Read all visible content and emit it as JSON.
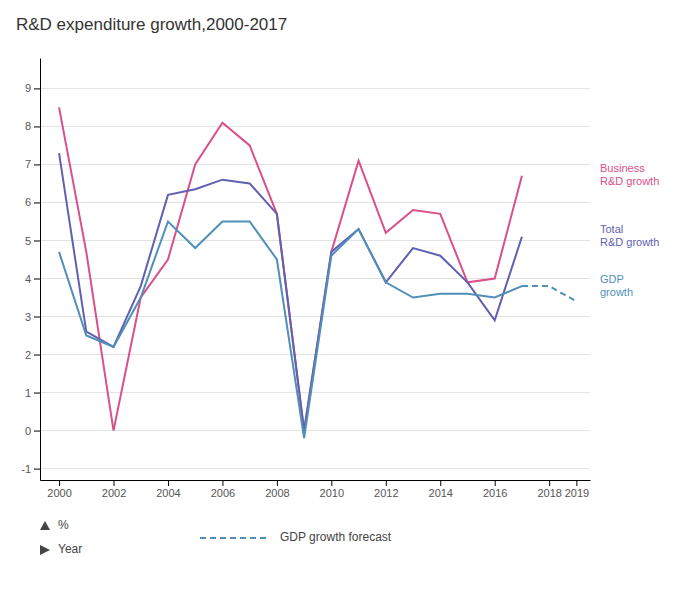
{
  "chart_data": {
    "type": "line",
    "title": "R&D expenditure growth,2000-2017",
    "xlabel": "Year",
    "ylabel": "%",
    "xlim": [
      1999.3,
      2019.5
    ],
    "ylim": [
      -1.3,
      9.8
    ],
    "xticks": [
      2000,
      2002,
      2004,
      2006,
      2008,
      2010,
      2012,
      2014,
      2016,
      2018,
      2019
    ],
    "yticks": [
      -1,
      0,
      1,
      2,
      3,
      4,
      5,
      6,
      7,
      8,
      9
    ],
    "grid": true,
    "series": [
      {
        "name": "Business\nR&D growth",
        "color": "#d9508a",
        "line_style": "solid",
        "x": [
          2000,
          2001,
          2002,
          2003,
          2004,
          2005,
          2006,
          2007,
          2008,
          2009,
          2010,
          2011,
          2012,
          2013,
          2014,
          2015,
          2016,
          2017
        ],
        "values": [
          8.5,
          4.7,
          0.0,
          3.5,
          4.5,
          7.0,
          8.1,
          7.5,
          5.7,
          0.0,
          4.7,
          7.1,
          5.2,
          5.8,
          5.7,
          3.9,
          4.0,
          6.7
        ]
      },
      {
        "name": "Total\nR&D growth",
        "color": "#6060b0",
        "line_style": "solid",
        "x": [
          2000,
          2001,
          2002,
          2003,
          2004,
          2005,
          2006,
          2007,
          2008,
          2009,
          2010,
          2011,
          2012,
          2013,
          2014,
          2015,
          2016,
          2017
        ],
        "values": [
          7.3,
          2.6,
          2.2,
          3.8,
          6.2,
          6.35,
          6.6,
          6.5,
          5.7,
          0.0,
          4.7,
          5.3,
          3.9,
          4.8,
          4.6,
          3.9,
          2.9,
          5.1
        ]
      },
      {
        "name": "GDP\ngrowth",
        "color": "#5090b8",
        "line_style": "solid",
        "x": [
          2000,
          2001,
          2002,
          2003,
          2004,
          2005,
          2006,
          2007,
          2008,
          2009,
          2010,
          2011,
          2012,
          2013,
          2014,
          2015,
          2016,
          2017
        ],
        "values": [
          4.7,
          2.5,
          2.2,
          3.5,
          5.5,
          4.8,
          5.5,
          5.5,
          4.5,
          -0.2,
          4.6,
          5.3,
          3.9,
          3.5,
          3.6,
          3.6,
          3.5,
          3.8
        ]
      },
      {
        "name": "GDP growth forecast",
        "color": "#5090b8",
        "line_style": "dashed",
        "x": [
          2017,
          2018,
          2019
        ],
        "values": [
          3.8,
          3.8,
          3.4
        ]
      }
    ]
  }
}
